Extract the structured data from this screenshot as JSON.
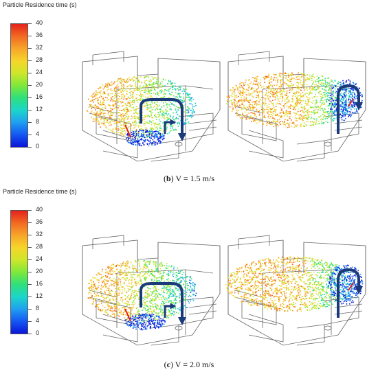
{
  "panels": [
    {
      "id": "b",
      "legend_title": "Particle Residence time (s)",
      "ticks": [
        "40",
        "36",
        "32",
        "28",
        "24",
        "20",
        "16",
        "12",
        "8",
        "4",
        "0"
      ],
      "caption_letter": "b",
      "caption_rest": " V = 1.5 m/s"
    },
    {
      "id": "c",
      "legend_title": "Particle Residence time (s)",
      "ticks": [
        "40",
        "36",
        "32",
        "28",
        "24",
        "20",
        "16",
        "12",
        "8",
        "4",
        "0"
      ],
      "caption_letter": "c",
      "caption_rest": " V = 2.0 m/s"
    }
  ],
  "colormap": [
    "#0a17d9",
    "#1557f2",
    "#1fa0f0",
    "#1cd6c9",
    "#2fe07a",
    "#7fe83a",
    "#cfe62b",
    "#f6d52a",
    "#f7a52a",
    "#f26a22",
    "#e5221c"
  ]
}
